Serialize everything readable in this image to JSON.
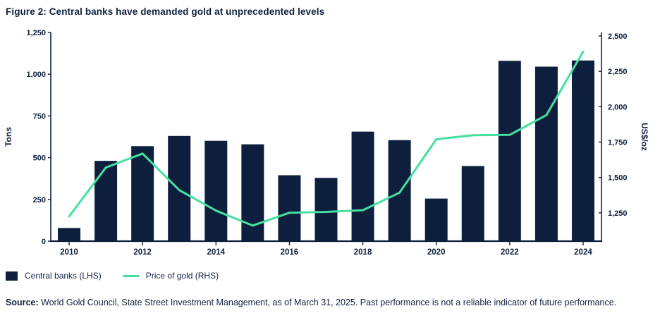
{
  "chart_data": {
    "type": "combo-bar-line",
    "title": "Figure 2: Central banks have demanded gold at unprecedented levels",
    "categories": [
      2010,
      2011,
      2012,
      2013,
      2014,
      2015,
      2016,
      2017,
      2018,
      2019,
      2020,
      2021,
      2022,
      2023,
      2024
    ],
    "series": [
      {
        "name": "Central banks (LHS)",
        "type": "bar",
        "axis": "left",
        "color": "#0e1f3d",
        "values": [
          79,
          481,
          569,
          630,
          601,
          580,
          395,
          379,
          656,
          605,
          255,
          450,
          1080,
          1045,
          1082
        ]
      },
      {
        "name": "Price of gold (RHS)",
        "type": "line",
        "axis": "right",
        "color": "#45e0a0",
        "values": [
          1225,
          1570,
          1669,
          1411,
          1266,
          1160,
          1251,
          1257,
          1269,
          1393,
          1770,
          1799,
          1801,
          1941,
          2389
        ]
      }
    ],
    "left_axis": {
      "label": "Tons",
      "min": 0,
      "max": 1250,
      "ticks": [
        0,
        250,
        500,
        750,
        1000,
        1250
      ]
    },
    "right_axis": {
      "label": "US$/oz",
      "min": 1050,
      "max": 2525,
      "ticks": [
        1250,
        1500,
        1750,
        2000,
        2250,
        2500
      ]
    },
    "x_axis": {
      "labeled_categories": [
        2010,
        2012,
        2014,
        2016,
        2018,
        2020,
        2022,
        2024
      ]
    },
    "grid": false,
    "legend_position": "bottom-left",
    "axis_color": "#0e1f3d"
  },
  "footer": {
    "source_label": "Source:",
    "source_text": " World Gold Council, State Street Investment Management, as of March 31, 2025. Past performance is not a reliable indicator of future performance."
  }
}
